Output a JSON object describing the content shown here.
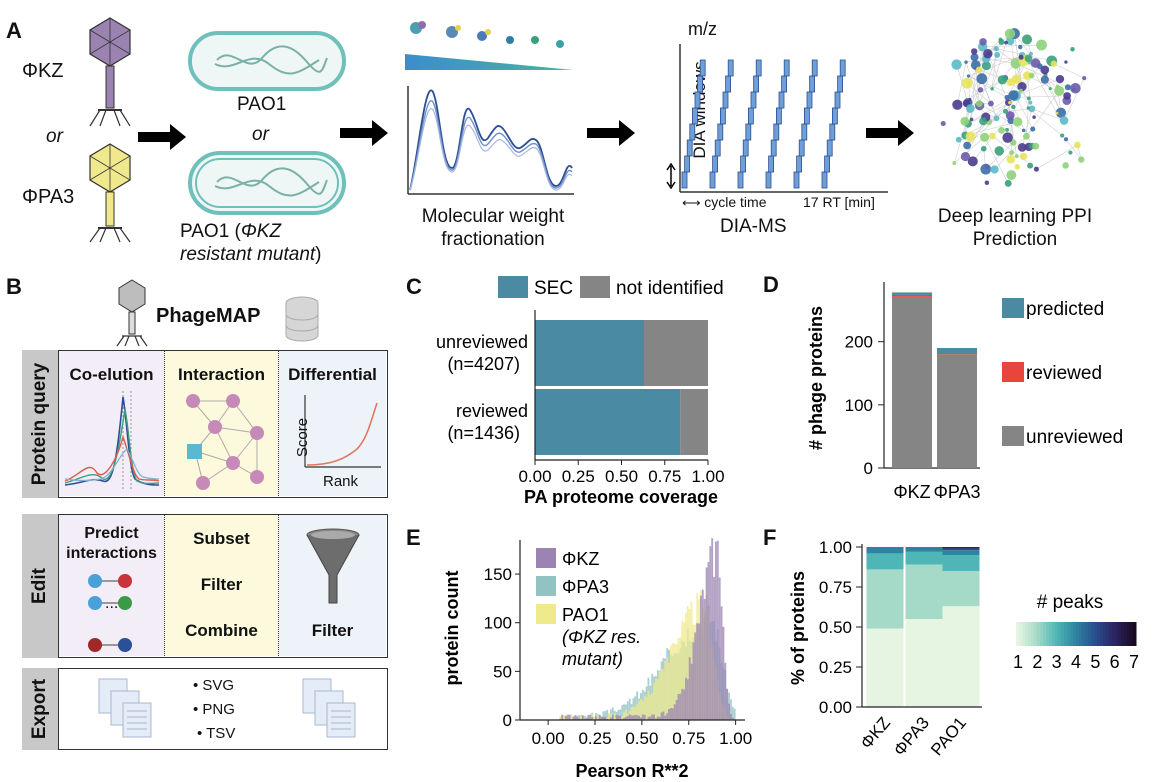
{
  "panel_labels": {
    "a": "A",
    "b": "B",
    "c": "C",
    "d": "D",
    "e": "E",
    "f": "F"
  },
  "panelA": {
    "phage1": "ΦKZ",
    "or1": "or",
    "phage2": "ΦPA3",
    "strain1": "PAO1",
    "or2": "or",
    "strain2a": "PAO1 (",
    "strain2b": "ΦKZ",
    "strain2c": "resistant mutant",
    ")": ")",
    "step_fraction_a": "Molecular weight",
    "step_fraction_b": "fractionation",
    "mz": "m/z",
    "dia_windows": "DIA windows",
    "cycle_time": "cycle time",
    "rt": "17 RT [min]",
    "dia_ms": "DIA-MS",
    "step_ppi_a": "Deep learning PPI",
    "step_ppi_b": "Prediction"
  },
  "panelB": {
    "title": "PhageMAP",
    "query_side": "Protein query",
    "coelution": "Co-elution",
    "interaction": "Interaction",
    "differential": "Differential",
    "score": "Score",
    "rank": "Rank",
    "edit_side": "Edit",
    "predict_a": "Predict",
    "predict_b": "interactions",
    "dots": "...",
    "subset": "Subset",
    "filter": "Filter",
    "combine": "Combine",
    "filter2": "Filter",
    "export_side": "Export",
    "svg": "• SVG",
    "png": "• PNG",
    "tsv": "• TSV"
  },
  "colors": {
    "teal": "#4b8aa3",
    "grey": "#858585",
    "red": "#e8453c",
    "purple": "#9b84b3",
    "lightteal": "#92c2c2",
    "yellow": "#efea8c"
  },
  "chart_data": [
    {
      "id": "C",
      "type": "bar",
      "orientation": "horizontal",
      "stacked": true,
      "categories": [
        "unreviewed\n(n=4207)",
        "reviewed\n(n=1436)"
      ],
      "cat_line1": [
        "unreviewed",
        "reviewed"
      ],
      "cat_line2": [
        "(n=4207)",
        "(n=1436)"
      ],
      "series": [
        {
          "name": "SEC",
          "values": [
            0.63,
            0.84
          ]
        },
        {
          "name": "not identified",
          "values": [
            0.37,
            0.16
          ]
        }
      ],
      "xlabel": "PA proteome coverage",
      "xlim": [
        0,
        1
      ],
      "xticks": [
        "0.00",
        "0.25",
        "0.50",
        "0.75",
        "1.00"
      ],
      "legend": "top"
    },
    {
      "id": "D",
      "type": "bar",
      "stacked": true,
      "categories": [
        "ΦKZ",
        "ΦPA3"
      ],
      "series": [
        {
          "name": "unreviewed",
          "values": [
            271,
            180
          ]
        },
        {
          "name": "reviewed",
          "values": [
            3,
            2
          ]
        },
        {
          "name": "predicted",
          "values": [
            4,
            8
          ]
        }
      ],
      "ylabel": "# phage proteins",
      "ylim": [
        0,
        285
      ],
      "yticks": [
        "0",
        "100",
        "200"
      ],
      "legend": "right"
    },
    {
      "id": "E",
      "type": "histogram",
      "series": [
        {
          "name": "ΦKZ"
        },
        {
          "name": "ΦPA3"
        },
        {
          "name": "PAO1",
          "name2": "(ΦKZ res.",
          "name3": "mutant)"
        }
      ],
      "xlabel": "Pearson R**2",
      "ylabel": "protein count",
      "xlim": [
        -0.15,
        1.05
      ],
      "ylim": [
        0,
        185
      ],
      "xticks": [
        "0.00",
        "0.25",
        "0.50",
        "0.75",
        "1.00"
      ],
      "yticks": [
        "0",
        "50",
        "100",
        "150"
      ],
      "legend": "top-left"
    },
    {
      "id": "F",
      "type": "bar",
      "stacked": true,
      "categories": [
        "ΦKZ",
        "ΦPA3",
        "PAO1"
      ],
      "series": [
        {
          "name": "1",
          "values": [
            0.49,
            0.55,
            0.63
          ]
        },
        {
          "name": "2",
          "values": [
            0.37,
            0.34,
            0.22
          ]
        },
        {
          "name": "3",
          "values": [
            0.1,
            0.08,
            0.1
          ]
        },
        {
          "name": "4",
          "values": [
            0.04,
            0.03,
            0.03
          ]
        },
        {
          "name": "5",
          "values": [
            0.0,
            0.0,
            0.01
          ]
        },
        {
          "name": "6",
          "values": [
            0.0,
            0.0,
            0.01
          ]
        }
      ],
      "ylabel": "% of proteins",
      "ylim": [
        0,
        1
      ],
      "yticks": [
        "0.00",
        "0.25",
        "0.50",
        "0.75",
        "1.00"
      ],
      "colorbar_title": "# peaks",
      "colorbar_ticks": [
        "1",
        "2",
        "3",
        "4",
        "5",
        "6",
        "7"
      ]
    }
  ]
}
